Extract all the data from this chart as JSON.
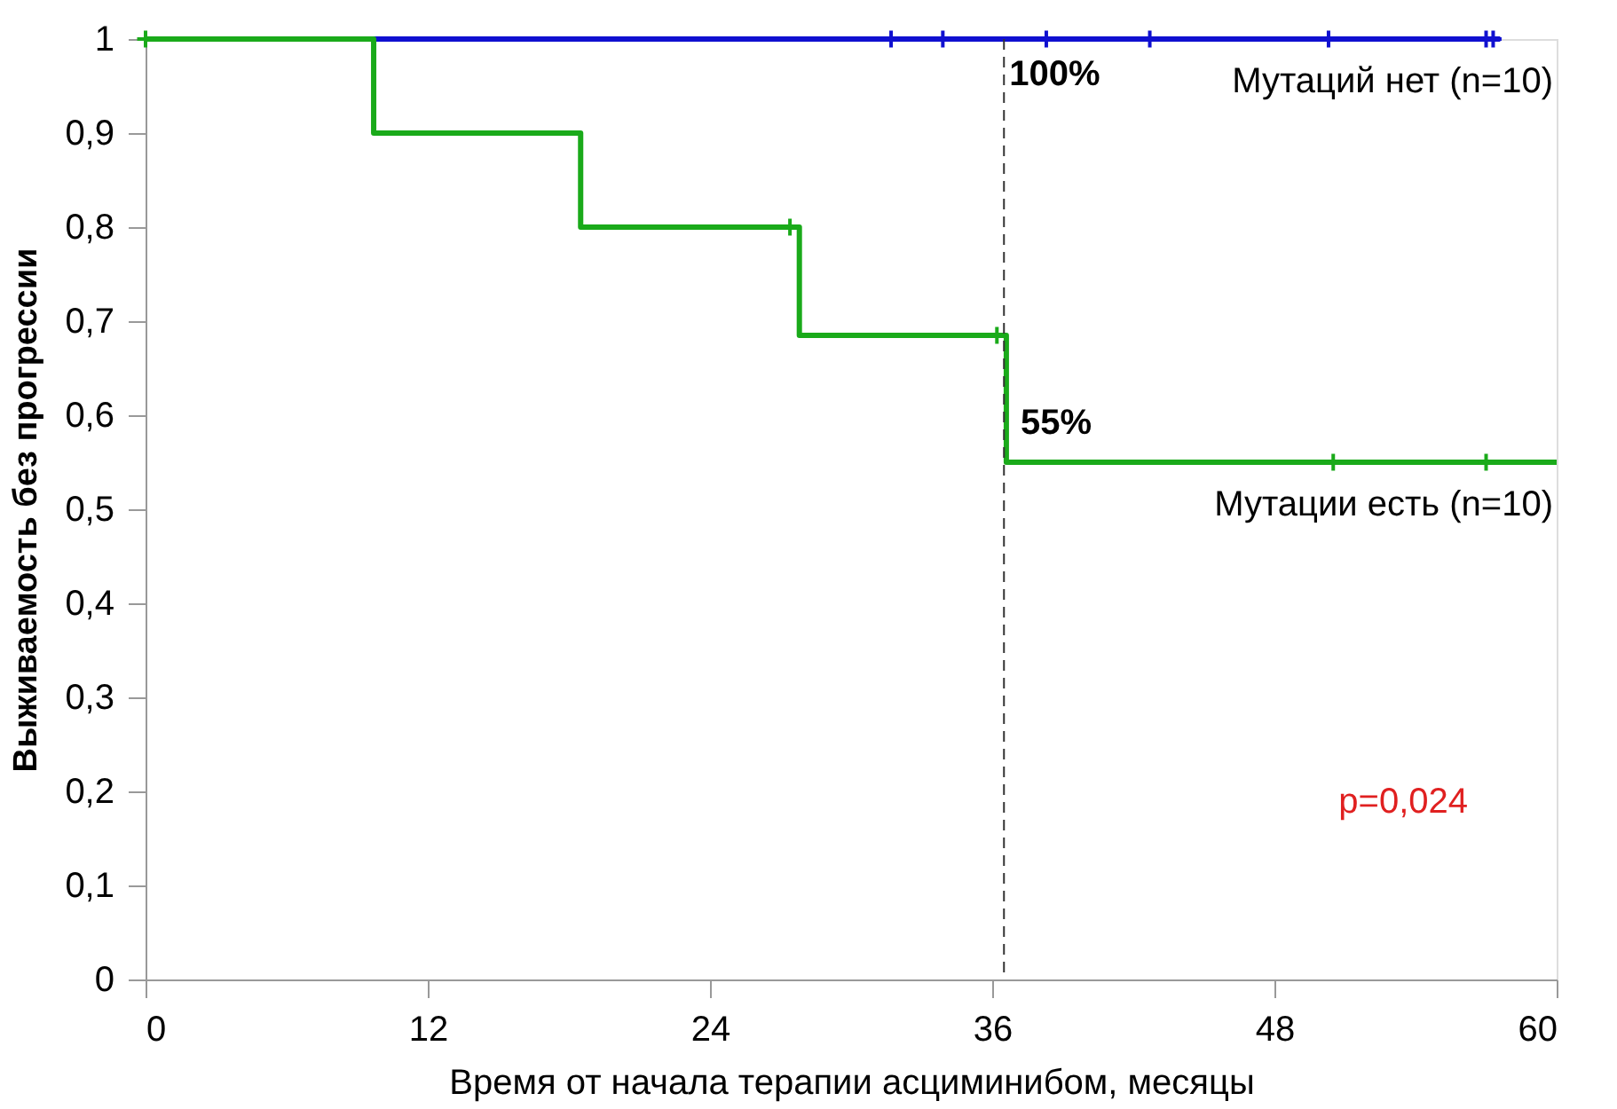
{
  "chart_data": {
    "type": "step",
    "xlabel": "Время от начала терапии асциминибом, месяцы",
    "ylabel": "Выживаемость без прогрессии",
    "xlim": [
      0,
      60
    ],
    "xticks": [
      0,
      12,
      24,
      36,
      48,
      60
    ],
    "ylim": [
      0,
      1
    ],
    "yticks": [
      {
        "value": 0,
        "label": "0"
      },
      {
        "value": 0.1,
        "label": "0,1"
      },
      {
        "value": 0.2,
        "label": "0,2"
      },
      {
        "value": 0.3,
        "label": "0,3"
      },
      {
        "value": 0.4,
        "label": "0,4"
      },
      {
        "value": 0.5,
        "label": "0,5"
      },
      {
        "value": 0.6,
        "label": "0,6"
      },
      {
        "value": 0.7,
        "label": "0,7"
      },
      {
        "value": 0.8,
        "label": "0,8"
      },
      {
        "value": 0.9,
        "label": "0,9"
      },
      {
        "value": 1,
        "label": "1"
      }
    ],
    "grid": false,
    "line_style": "solid",
    "series": [
      {
        "name": "Мутаций нет (n=10)",
        "color": "#1010d0",
        "x": [
          0,
          57.6
        ],
        "values": [
          1,
          1
        ]
      },
      {
        "name": "Мутации есть (n=10)",
        "color": "#1aaa1a",
        "x": [
          0,
          9.7,
          18.5,
          27.8,
          36.6,
          60
        ],
        "values": [
          1,
          0.9,
          0.8,
          0.685,
          0.55,
          0.55
        ]
      },
      {
        "type": "scatter",
        "marker": "cross",
        "color": "#1010d0",
        "x": [
          31.7,
          33.9,
          38.3,
          42.7,
          50.3,
          57.0,
          57.3
        ],
        "values": [
          1,
          1,
          1,
          1,
          1,
          1,
          1
        ]
      },
      {
        "type": "scatter",
        "marker": "cross",
        "color": "#1aaa1a",
        "x": [
          0,
          27.4,
          36.2,
          50.5,
          57.0
        ],
        "values": [
          1,
          0.8,
          0.685,
          0.55,
          0.55
        ]
      }
    ],
    "ref_lines": [
      {
        "axis": "x",
        "value": 36.5,
        "color": "#333333",
        "line_style": "dashed"
      }
    ],
    "annotations": [
      {
        "text": "100%",
        "x": 36.5,
        "y": 1
      },
      {
        "text": "55%",
        "x": 36.6,
        "y": 0.55
      },
      "p=0,024"
    ]
  }
}
